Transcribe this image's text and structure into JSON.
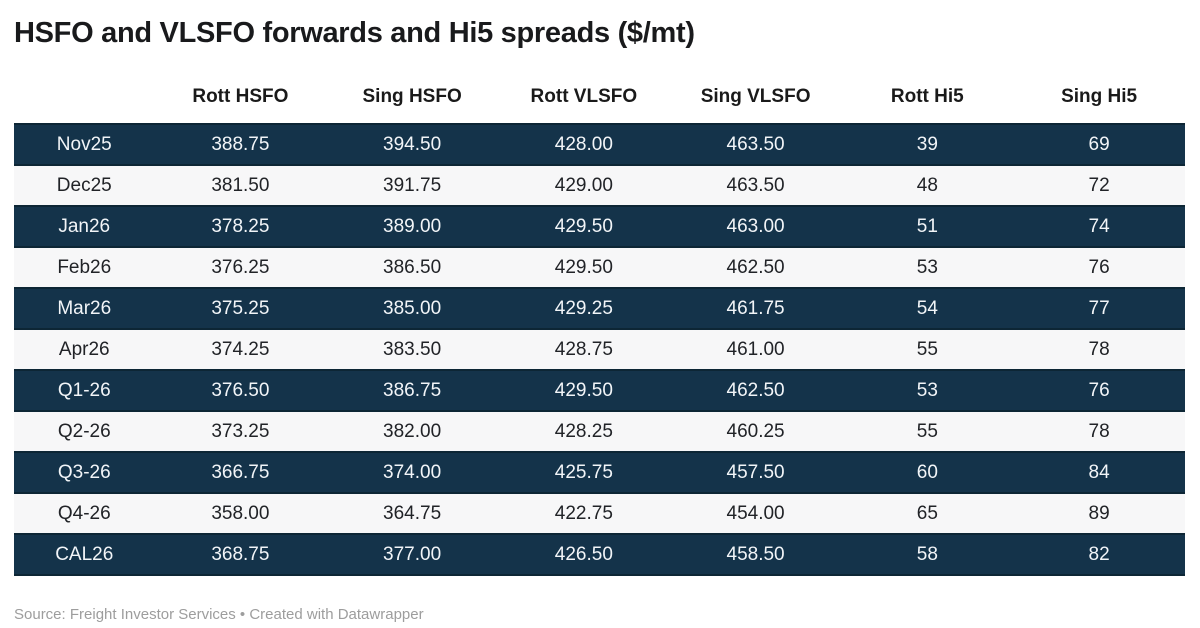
{
  "chart_data": {
    "type": "table",
    "title": "HSFO and VLSFO forwards and Hi5 spreads ($/mt)",
    "columns": [
      "",
      "Rott HSFO",
      "Sing HSFO",
      "Rott VLSFO",
      "Sing VLSFO",
      "Rott Hi5",
      "Sing Hi5"
    ],
    "rows": [
      {
        "label": "Nov25",
        "values": [
          "388.75",
          "394.50",
          "428.00",
          "463.50",
          "39",
          "69"
        ]
      },
      {
        "label": "Dec25",
        "values": [
          "381.50",
          "391.75",
          "429.00",
          "463.50",
          "48",
          "72"
        ]
      },
      {
        "label": "Jan26",
        "values": [
          "378.25",
          "389.00",
          "429.50",
          "463.00",
          "51",
          "74"
        ]
      },
      {
        "label": "Feb26",
        "values": [
          "376.25",
          "386.50",
          "429.50",
          "462.50",
          "53",
          "76"
        ]
      },
      {
        "label": "Mar26",
        "values": [
          "375.25",
          "385.00",
          "429.25",
          "461.75",
          "54",
          "77"
        ]
      },
      {
        "label": "Apr26",
        "values": [
          "374.25",
          "383.50",
          "428.75",
          "461.00",
          "55",
          "78"
        ]
      },
      {
        "label": "Q1-26",
        "values": [
          "376.50",
          "386.75",
          "429.50",
          "462.50",
          "53",
          "76"
        ]
      },
      {
        "label": "Q2-26",
        "values": [
          "373.25",
          "382.00",
          "428.25",
          "460.25",
          "55",
          "78"
        ]
      },
      {
        "label": "Q3-26",
        "values": [
          "366.75",
          "374.00",
          "425.75",
          "457.50",
          "60",
          "84"
        ]
      },
      {
        "label": "Q4-26",
        "values": [
          "358.00",
          "364.75",
          "422.75",
          "454.00",
          "65",
          "89"
        ]
      },
      {
        "label": "CAL26",
        "values": [
          "368.75",
          "377.00",
          "426.50",
          "458.50",
          "58",
          "82"
        ]
      }
    ],
    "layout": {
      "row_striping": "odd rows dark navy with light text, even rows near-white with dark text",
      "alignment": "all cells centered",
      "legend": "none",
      "grid": "none"
    }
  },
  "footer": {
    "text": "Source: Freight Investor Services • Created with Datawrapper"
  },
  "colors": {
    "background": "#ffffff",
    "title_text": "#191a1c",
    "header_text": "#1a1a1a",
    "row_dark_bg": "#14334a",
    "row_dark_border": "#0d2635",
    "row_dark_text": "#f2f5f8",
    "row_light_bg": "#f7f7f8",
    "row_light_text": "#212327",
    "footer_text": "#9d9d9d"
  }
}
